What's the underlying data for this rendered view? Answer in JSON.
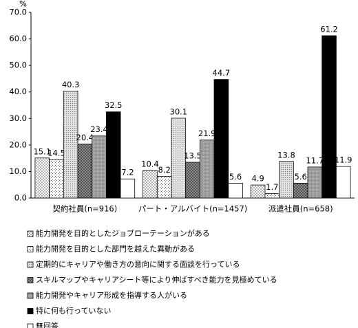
{
  "chart_data": {
    "type": "bar",
    "y_unit": "%",
    "categories": [
      "契約社員(n=916)",
      "パート・アルバイト(n=1457)",
      "派遣社員(n=658)"
    ],
    "series": [
      {
        "name": "能力開発を目的としたジョブローテーションがある",
        "color": "#ffffff",
        "values": [
          15.1,
          10.4,
          4.9
        ]
      },
      {
        "name": "能力開発を目的とした部門を越えた異動がある",
        "color": "#ffffff",
        "values": [
          14.5,
          8.2,
          1.7
        ]
      },
      {
        "name": "定期的にキャリアや働き方の意向に関する面談を行っている",
        "color": "#e0e0e0",
        "values": [
          40.3,
          30.1,
          13.8
        ]
      },
      {
        "name": "スキルマップやキャリアシート等により伸ばすべき能力を見極めている",
        "color": "#9a9a9a",
        "values": [
          20.4,
          13.5,
          5.6
        ]
      },
      {
        "name": "能力開発やキャリア形成を指導する人がいる",
        "color": "#a6a6a6",
        "values": [
          23.4,
          21.9,
          11.7
        ]
      },
      {
        "name": "特に何も行っていない",
        "color": "#000000",
        "values": [
          32.5,
          44.7,
          61.2
        ]
      },
      {
        "name": "無回答",
        "color": "#ffffff",
        "values": [
          7.2,
          5.6,
          11.9
        ]
      }
    ],
    "ylim": [
      0,
      70
    ],
    "yticks": [
      {
        "value": 0,
        "label": "0.0"
      },
      {
        "value": 10,
        "label": "10.0"
      },
      {
        "value": 20,
        "label": "20.0"
      },
      {
        "value": 30,
        "label": "30.0"
      },
      {
        "value": 40,
        "label": "40.0"
      },
      {
        "value": 50,
        "label": "50.0"
      },
      {
        "value": 60,
        "label": "60.0"
      },
      {
        "value": 70,
        "label": "70.0"
      }
    ],
    "grid": false
  }
}
